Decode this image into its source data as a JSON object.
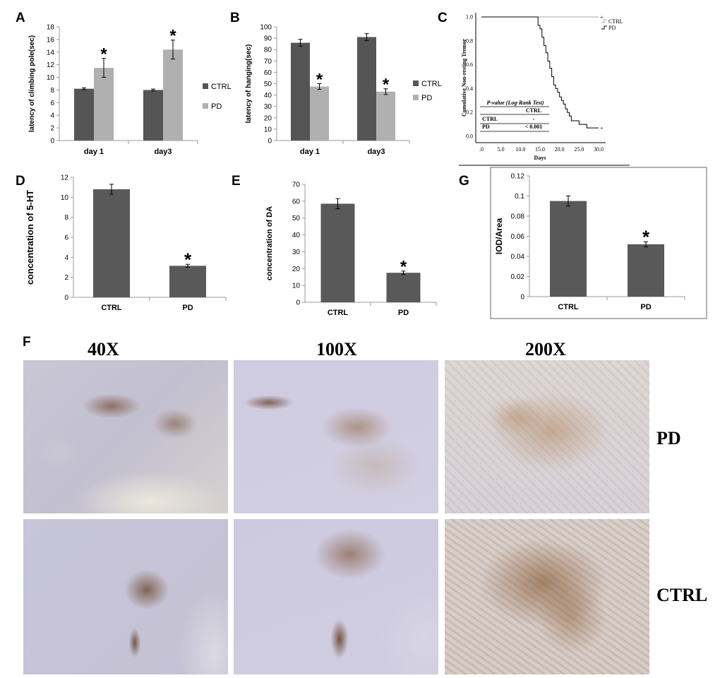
{
  "panels": {
    "A": "A",
    "B": "B",
    "C": "C",
    "D": "D",
    "E": "E",
    "F": "F",
    "G": "G"
  },
  "chart_data": [
    {
      "id": "A",
      "type": "bar",
      "ylabel": "latency of climbing pole(sec)",
      "categories": [
        "day 1",
        "day3"
      ],
      "series": [
        {
          "name": "CTRL",
          "values": [
            8.2,
            8.0
          ],
          "errors": [
            0.15,
            0.15
          ],
          "color": "#555555"
        },
        {
          "name": "PD",
          "values": [
            11.5,
            14.4
          ],
          "errors": [
            1.5,
            1.5
          ],
          "color": "#b0b0b0"
        }
      ],
      "ylim": [
        0,
        18
      ],
      "yticks": [
        0,
        2,
        4,
        6,
        8,
        10,
        12,
        14,
        16,
        18
      ],
      "significance": [
        "*",
        "*"
      ],
      "legend_position": "right"
    },
    {
      "id": "B",
      "type": "bar",
      "ylabel": "latency of hanging(sec)",
      "categories": [
        "day 1",
        "day3"
      ],
      "series": [
        {
          "name": "CTRL",
          "values": [
            86,
            91
          ],
          "errors": [
            3,
            3
          ],
          "color": "#555555"
        },
        {
          "name": "PD",
          "values": [
            47.5,
            43
          ],
          "errors": [
            2.5,
            2.5
          ],
          "color": "#b0b0b0"
        }
      ],
      "ylim": [
        0,
        100
      ],
      "yticks": [
        0,
        10,
        20,
        30,
        40,
        50,
        60,
        70,
        80,
        90,
        100
      ],
      "significance": [
        "*",
        "*"
      ],
      "legend_position": "right"
    },
    {
      "id": "C",
      "type": "line",
      "ylabel": "Cumulative Non-resting Tremor",
      "xlabel": "Days",
      "xlim": [
        0,
        30
      ],
      "xticks": [
        0,
        5,
        10,
        15,
        20,
        25,
        30
      ],
      "xtick_labels": [
        ".0",
        "5.0",
        "10.0",
        "15.0",
        "20.0",
        "25.0",
        "30.0"
      ],
      "ylim": [
        0,
        1
      ],
      "yticks": [
        0,
        0.2,
        0.4,
        0.6,
        0.8,
        1.0
      ],
      "ytick_labels": [
        "0.0",
        "0.2",
        "0.4",
        "0.6",
        "0.8",
        "1.0"
      ],
      "series": [
        {
          "name": "CTRL",
          "x": [
            0,
            30
          ],
          "y": [
            1.0,
            1.0
          ],
          "color": "#aaaaaa"
        },
        {
          "name": "PD",
          "x": [
            0,
            14,
            14.5,
            15,
            15.5,
            16,
            16.5,
            17,
            17.5,
            18,
            18.5,
            19,
            19.5,
            20,
            20.5,
            21,
            21.5,
            22,
            22.5,
            23,
            24,
            25,
            26,
            27,
            28,
            30
          ],
          "y": [
            1.0,
            1.0,
            0.93,
            0.9,
            0.83,
            0.76,
            0.7,
            0.63,
            0.57,
            0.5,
            0.43,
            0.4,
            0.37,
            0.33,
            0.3,
            0.27,
            0.23,
            0.2,
            0.17,
            0.13,
            0.13,
            0.1,
            0.1,
            0.07,
            0.07,
            0.07
          ],
          "color": "#000000"
        }
      ],
      "table": {
        "title": "P-value (Log-Rank Test)",
        "header": "CTRL",
        "rows": [
          [
            "CTRL",
            "-"
          ],
          [
            "PD",
            "< 0.001"
          ]
        ]
      },
      "legend_position": "top-right"
    },
    {
      "id": "D",
      "type": "bar",
      "ylabel": "concentration of 5-HT",
      "categories": [
        "CTRL",
        "PD"
      ],
      "values": [
        10.8,
        3.15
      ],
      "errors": [
        0.5,
        0.15
      ],
      "ylim": [
        0,
        12
      ],
      "yticks": [
        0,
        2,
        4,
        6,
        8,
        10,
        12
      ],
      "significance": [
        "",
        "*"
      ],
      "color": "#595959"
    },
    {
      "id": "E",
      "type": "bar",
      "ylabel": "concentration of DA",
      "categories": [
        "CTRL",
        "PD"
      ],
      "values": [
        58.5,
        17.5
      ],
      "errors": [
        3.0,
        1.0
      ],
      "ylim": [
        0,
        70
      ],
      "yticks": [
        0,
        10,
        20,
        30,
        40,
        50,
        60,
        70
      ],
      "significance": [
        "",
        "*"
      ],
      "color": "#595959"
    },
    {
      "id": "G",
      "type": "bar",
      "ylabel": "IOD/Area",
      "categories": [
        "CTRL",
        "PD"
      ],
      "values": [
        0.095,
        0.052
      ],
      "errors": [
        0.005,
        0.0025
      ],
      "ylim": [
        0,
        0.12
      ],
      "yticks": [
        0,
        0.02,
        0.04,
        0.06,
        0.08,
        0.1,
        0.12
      ],
      "ytick_labels": [
        "0",
        "0.02",
        "0.04",
        "0.06",
        "0.08",
        "0.1",
        "0.12"
      ],
      "significance": [
        "",
        "*"
      ],
      "color": "#595959"
    }
  ],
  "micrographs": {
    "magnifications": [
      "40X",
      "100X",
      "200X"
    ],
    "rows": [
      "PD",
      "CTRL"
    ]
  }
}
